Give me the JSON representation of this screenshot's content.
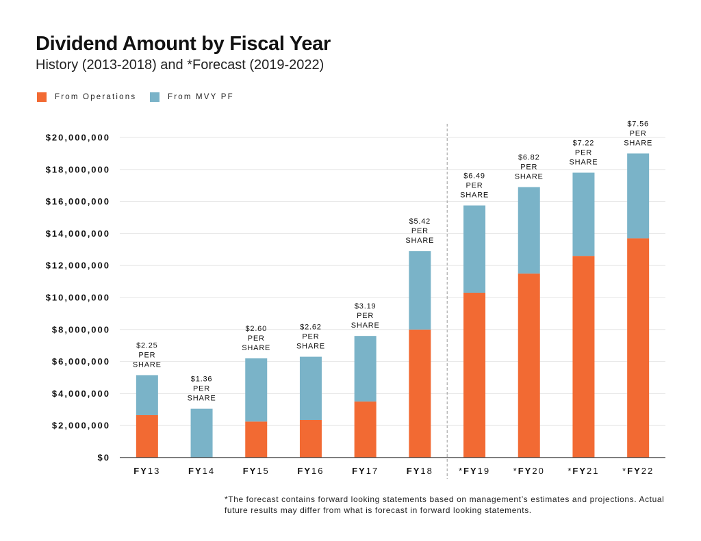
{
  "chart_data": {
    "type": "bar",
    "stacked": true,
    "title": "Dividend Amount by Fiscal Year",
    "subtitle": "History (2013-2018) and *Forecast (2019-2022)",
    "categories": [
      {
        "prefix": "",
        "bold": "FY",
        "rest": "13"
      },
      {
        "prefix": "",
        "bold": "FY",
        "rest": "14"
      },
      {
        "prefix": "",
        "bold": "FY",
        "rest": "15"
      },
      {
        "prefix": "",
        "bold": "FY",
        "rest": "16"
      },
      {
        "prefix": "",
        "bold": "FY",
        "rest": "17"
      },
      {
        "prefix": "",
        "bold": "FY",
        "rest": "18"
      },
      {
        "prefix": "*",
        "bold": "FY",
        "rest": "19"
      },
      {
        "prefix": "*",
        "bold": "FY",
        "rest": "20"
      },
      {
        "prefix": "*",
        "bold": "FY",
        "rest": "21"
      },
      {
        "prefix": "*",
        "bold": "FY",
        "rest": "22"
      }
    ],
    "series": [
      {
        "name": "From Operations",
        "color": "#f26a33",
        "values": [
          2650000,
          0,
          2250000,
          2350000,
          3500000,
          8000000,
          10300000,
          11500000,
          12600000,
          13700000
        ]
      },
      {
        "name": "From MVY PF",
        "color": "#7ab3c8",
        "values": [
          2500000,
          3050000,
          3950000,
          3950000,
          4100000,
          4900000,
          5450000,
          5400000,
          5200000,
          5300000
        ]
      }
    ],
    "per_share_labels": [
      [
        "$2.25",
        "PER",
        "SHARE"
      ],
      [
        "$1.36",
        "PER",
        "SHARE"
      ],
      [
        "$2.60",
        "PER",
        "SHARE"
      ],
      [
        "$2.62",
        "PER",
        "SHARE"
      ],
      [
        "$3.19",
        "PER",
        "SHARE"
      ],
      [
        "$5.42",
        "PER",
        "SHARE"
      ],
      [
        "$6.49",
        "PER",
        "SHARE"
      ],
      [
        "$6.82",
        "PER",
        "SHARE"
      ],
      [
        "$7.22",
        "PER",
        "SHARE"
      ],
      [
        "$7.56",
        "PER",
        "SHARE"
      ]
    ],
    "y_ticks": [
      {
        "value": 0,
        "label": "$0"
      },
      {
        "value": 2000000,
        "label": "$2,000,000"
      },
      {
        "value": 4000000,
        "label": "$4,000,000"
      },
      {
        "value": 6000000,
        "label": "$6,000,000"
      },
      {
        "value": 8000000,
        "label": "$8,000,000"
      },
      {
        "value": 10000000,
        "label": "$10,000,000"
      },
      {
        "value": 12000000,
        "label": "$12,000,000"
      },
      {
        "value": 14000000,
        "label": "$14,000,000"
      },
      {
        "value": 16000000,
        "label": "$16,000,000"
      },
      {
        "value": 18000000,
        "label": "$18,000,000"
      },
      {
        "value": 20000000,
        "label": "$20,000,000"
      }
    ],
    "ylim": [
      0,
      20000000
    ],
    "grid": true,
    "legend_position": "top-left",
    "forecast_divider_after_index": 5
  },
  "legend": {
    "operations_label": "From Operations",
    "mvy_label": "From MVY PF",
    "operations_color": "#f26a33",
    "mvy_color": "#7ab3c8"
  },
  "footnote": "*The forecast contains forward looking statements based on management’s estimates and projections. Actual future results may differ from what is forecast in forward looking statements."
}
